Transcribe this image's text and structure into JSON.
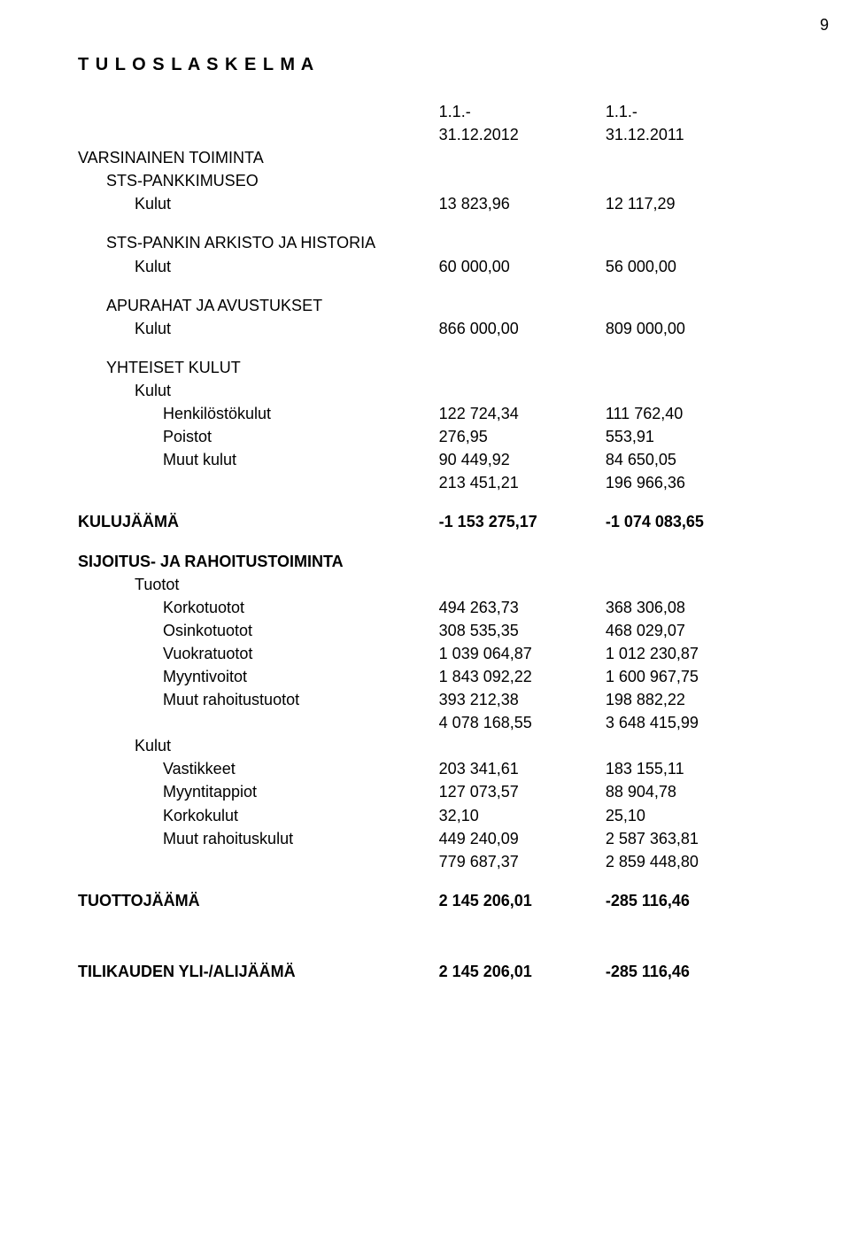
{
  "page_number": "9",
  "title": "T U L O S L A S K E L M A",
  "period1_line1": "1.1.-",
  "period1_line2": "31.12.2012",
  "period2_line1": "1.1.-",
  "period2_line2": "31.12.2011",
  "varsinainen": {
    "heading": "VARSINAINEN TOIMINTA",
    "sts_museo": {
      "label": "STS-PANKKIMUSEO",
      "kulut_label": "Kulut",
      "v1": "13 823,96",
      "v2": "12 117,29"
    },
    "arkisto": {
      "label": "STS-PANKIN ARKISTO JA HISTORIA",
      "kulut_label": "Kulut",
      "v1": "60 000,00",
      "v2": "56 000,00"
    },
    "apurahat": {
      "label": "APURAHAT JA AVUSTUKSET",
      "kulut_label": "Kulut",
      "v1": "866 000,00",
      "v2": "809 000,00"
    },
    "yhteiset": {
      "label": "YHTEISET KULUT",
      "kulut_label": "Kulut",
      "rows": [
        {
          "label": "Henkilöstökulut",
          "v1": "122 724,34",
          "v2": "111 762,40"
        },
        {
          "label": "Poistot",
          "v1": "276,95",
          "v2": "553,91"
        },
        {
          "label": "Muut kulut",
          "v1": "90 449,92",
          "v2": "84 650,05"
        }
      ],
      "sum": {
        "v1": "213 451,21",
        "v2": "196 966,36"
      }
    }
  },
  "kulujaama": {
    "label": "KULUJÄÄMÄ",
    "v1": "-1 153 275,17",
    "v2": "-1 074 083,65"
  },
  "sijoitus": {
    "heading": "SIJOITUS- JA RAHOITUSTOIMINTA",
    "tuotot_label": "Tuotot",
    "tuotot_rows": [
      {
        "label": "Korkotuotot",
        "v1": "494 263,73",
        "v2": "368 306,08"
      },
      {
        "label": "Osinkotuotot",
        "v1": "308 535,35",
        "v2": "468 029,07"
      },
      {
        "label": "Vuokratuotot",
        "v1": "1 039 064,87",
        "v2": "1 012 230,87"
      },
      {
        "label": "Myyntivoitot",
        "v1": "1 843 092,22",
        "v2": "1 600 967,75"
      },
      {
        "label": "Muut rahoitustuotot",
        "v1": "393 212,38",
        "v2": "198 882,22"
      }
    ],
    "tuotot_sum": {
      "v1": "4 078 168,55",
      "v2": "3 648 415,99"
    },
    "kulut_label": "Kulut",
    "kulut_rows": [
      {
        "label": "Vastikkeet",
        "v1": "203 341,61",
        "v2": "183 155,11"
      },
      {
        "label": "Myyntitappiot",
        "v1": "127 073,57",
        "v2": "88 904,78"
      },
      {
        "label": "Korkokulut",
        "v1": "32,10",
        "v2": "25,10"
      },
      {
        "label": "Muut rahoituskulut",
        "v1": "449 240,09",
        "v2": "2 587 363,81"
      }
    ],
    "kulut_sum": {
      "v1": "779 687,37",
      "v2": "2 859 448,80"
    }
  },
  "tuottojaama": {
    "label": "TUOTTOJÄÄMÄ",
    "v1": "2 145 206,01",
    "v2": "-285 116,46"
  },
  "tilikauden": {
    "label": "TILIKAUDEN YLI-/ALIJÄÄMÄ",
    "v1": "2 145 206,01",
    "v2": "-285 116,46"
  }
}
